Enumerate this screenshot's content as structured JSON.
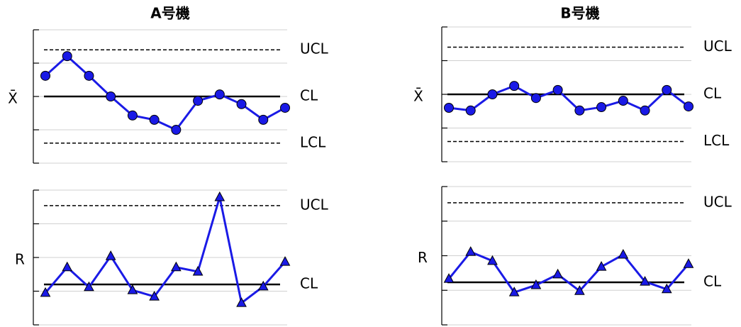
{
  "chart_data": [
    {
      "type": "line",
      "title": "A号機",
      "ylabel": "X̄",
      "grid": true,
      "ylim": [
        0,
        4
      ],
      "yticks": [
        0,
        1,
        2,
        3,
        4
      ],
      "series": [
        {
          "color": "#1a1ae6",
          "marker": "circle",
          "values": [
            2.62,
            3.21,
            2.62,
            2.0,
            1.43,
            1.3,
            1.0,
            1.87,
            2.06,
            1.77,
            1.3,
            1.66
          ]
        }
      ],
      "reference_lines": [
        {
          "label": "UCL",
          "value": 3.4,
          "style": "dashed"
        },
        {
          "label": "CL",
          "value": 2.0,
          "style": "solid"
        },
        {
          "label": "LCL",
          "value": 0.6,
          "style": "dashed"
        }
      ]
    },
    {
      "type": "line",
      "title": "B号機",
      "ylabel": "X̄",
      "grid": true,
      "ylim": [
        0,
        4
      ],
      "yticks": [
        0,
        1,
        2,
        3,
        4
      ],
      "series": [
        {
          "color": "#1a1ae6",
          "marker": "circle",
          "values": [
            1.6,
            1.52,
            2.0,
            2.25,
            1.89,
            2.13,
            1.52,
            1.62,
            1.81,
            1.52,
            2.13,
            1.64
          ]
        }
      ],
      "reference_lines": [
        {
          "label": "UCL",
          "value": 3.4,
          "style": "dashed"
        },
        {
          "label": "CL",
          "value": 2.0,
          "style": "solid"
        },
        {
          "label": "LCL",
          "value": 0.6,
          "style": "dashed"
        }
      ]
    },
    {
      "type": "line",
      "ylabel": "R",
      "grid": true,
      "ylim": [
        0,
        4
      ],
      "yticks": [
        0,
        1,
        2,
        3,
        4
      ],
      "series": [
        {
          "color": "#1a1ae6",
          "marker": "triangle",
          "values": [
            0.95,
            1.71,
            1.12,
            2.04,
            1.03,
            0.84,
            1.71,
            1.58,
            3.79,
            0.65,
            1.14,
            1.87
          ]
        }
      ],
      "reference_lines": [
        {
          "label": "UCL",
          "value": 3.54,
          "style": "dashed"
        },
        {
          "label": "CL",
          "value": 1.2,
          "style": "solid"
        }
      ]
    },
    {
      "type": "line",
      "ylabel": "R",
      "grid": true,
      "ylim": [
        0,
        4
      ],
      "yticks": [
        0,
        1,
        2,
        3,
        4
      ],
      "series": [
        {
          "color": "#1a1ae6",
          "marker": "triangle",
          "values": [
            1.33,
            2.11,
            1.85,
            0.94,
            1.15,
            1.46,
            0.98,
            1.68,
            2.03,
            1.25,
            1.03,
            1.76
          ]
        }
      ],
      "reference_lines": [
        {
          "label": "UCL",
          "value": 3.53,
          "style": "dashed"
        },
        {
          "label": "CL",
          "value": 1.23,
          "style": "solid"
        }
      ]
    }
  ]
}
